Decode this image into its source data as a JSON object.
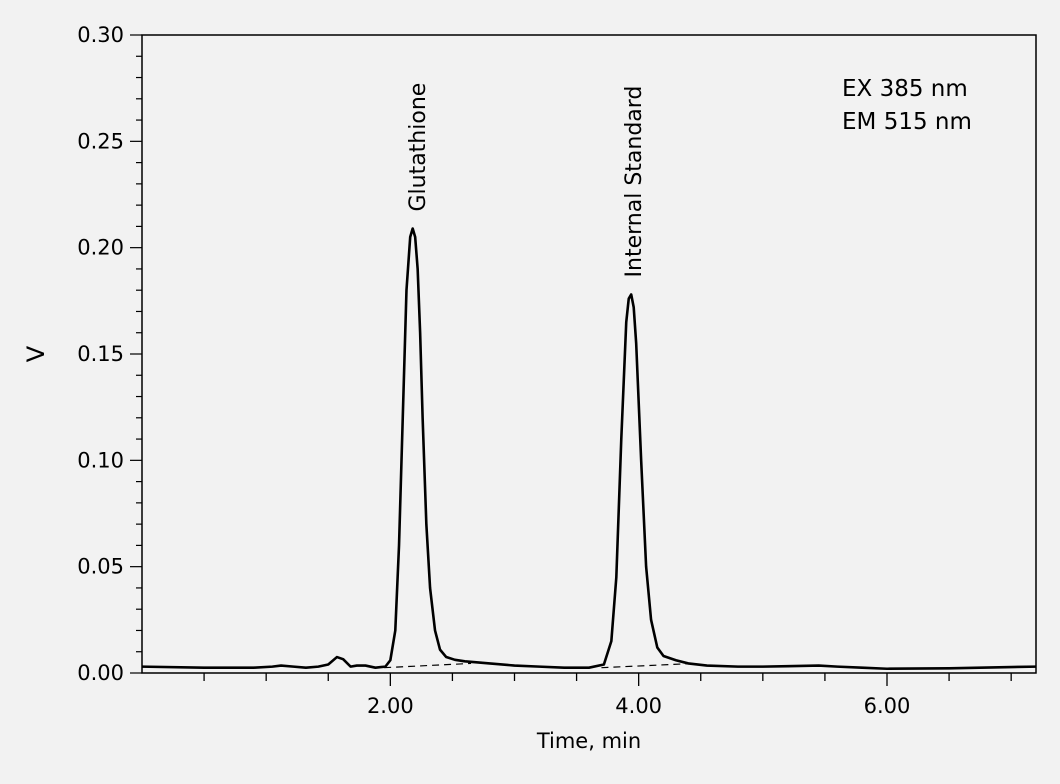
{
  "chart_data": {
    "type": "line",
    "xlabel": "Time, min",
    "ylabel": "V",
    "xlim": [
      0.0,
      7.2
    ],
    "ylim": [
      0.0,
      0.3
    ],
    "x_ticks": [
      2.0,
      4.0,
      6.0
    ],
    "x_tick_labels": [
      "2.00",
      "4.00",
      "6.00"
    ],
    "y_ticks": [
      0.0,
      0.05,
      0.1,
      0.15,
      0.2,
      0.25,
      0.3
    ],
    "y_tick_labels": [
      "0.00",
      "0.05",
      "0.10",
      "0.15",
      "0.20",
      "0.25",
      "0.30"
    ],
    "grid": false,
    "legend": "none",
    "annotation_lines": [
      "EX 385 nm",
      "EM 515 nm"
    ],
    "peaks": [
      {
        "label": "Glutathione",
        "x": 2.2,
        "y": 0.209
      },
      {
        "label": "Internal Standard",
        "x": 3.94,
        "y": 0.178
      }
    ],
    "series": [
      {
        "color": "#000000",
        "x": [
          0.0,
          0.5,
          0.9,
          1.05,
          1.12,
          1.22,
          1.32,
          1.42,
          1.5,
          1.57,
          1.62,
          1.68,
          1.73,
          1.8,
          1.88,
          1.96,
          2.0,
          2.04,
          2.07,
          2.1,
          2.13,
          2.16,
          2.18,
          2.2,
          2.22,
          2.24,
          2.26,
          2.29,
          2.32,
          2.36,
          2.4,
          2.45,
          2.52,
          2.6,
          2.8,
          3.0,
          3.2,
          3.4,
          3.6,
          3.72,
          3.78,
          3.82,
          3.86,
          3.9,
          3.92,
          3.94,
          3.96,
          3.98,
          4.02,
          4.06,
          4.1,
          4.15,
          4.2,
          4.3,
          4.4,
          4.55,
          4.8,
          5.0,
          5.2,
          5.45,
          5.6,
          5.8,
          6.0,
          6.5,
          7.0,
          7.2
        ],
        "y": [
          0.003,
          0.0025,
          0.0025,
          0.003,
          0.0035,
          0.003,
          0.0025,
          0.003,
          0.004,
          0.0075,
          0.0065,
          0.003,
          0.0035,
          0.0035,
          0.0025,
          0.003,
          0.006,
          0.02,
          0.06,
          0.12,
          0.18,
          0.205,
          0.209,
          0.205,
          0.19,
          0.16,
          0.12,
          0.07,
          0.04,
          0.02,
          0.011,
          0.0075,
          0.0062,
          0.0055,
          0.0045,
          0.0035,
          0.003,
          0.0025,
          0.0025,
          0.004,
          0.015,
          0.045,
          0.11,
          0.165,
          0.176,
          0.178,
          0.172,
          0.155,
          0.1,
          0.05,
          0.025,
          0.012,
          0.008,
          0.006,
          0.0045,
          0.0035,
          0.003,
          0.003,
          0.0032,
          0.0035,
          0.003,
          0.0025,
          0.002,
          0.0022,
          0.0028,
          0.003
        ]
      },
      {
        "color": "#000000",
        "dash": "dashed",
        "x": [
          1.95,
          2.65
        ],
        "y": [
          0.0025,
          0.0045
        ]
      },
      {
        "color": "#000000",
        "dash": "dashed",
        "x": [
          3.7,
          4.45
        ],
        "y": [
          0.0025,
          0.0045
        ]
      }
    ]
  }
}
